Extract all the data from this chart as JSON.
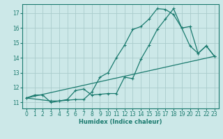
{
  "xlabel": "Humidex (Indice chaleur)",
  "bg_color": "#cce8e8",
  "line_color": "#1a7a6e",
  "grid_color": "#aacccc",
  "xlim": [
    -0.5,
    23.5
  ],
  "ylim": [
    10.6,
    17.6
  ],
  "yticks": [
    11,
    12,
    13,
    14,
    15,
    16,
    17
  ],
  "xticks": [
    0,
    1,
    2,
    3,
    4,
    5,
    6,
    7,
    8,
    9,
    10,
    11,
    12,
    13,
    14,
    15,
    16,
    17,
    18,
    19,
    20,
    21,
    22,
    23
  ],
  "line1_x": [
    0,
    1,
    2,
    3,
    4,
    5,
    6,
    7,
    8,
    9,
    10,
    11,
    12,
    13,
    14,
    15,
    16,
    17,
    18,
    19,
    20,
    21,
    22,
    23
  ],
  "line1_y": [
    11.3,
    11.5,
    11.5,
    11.0,
    11.1,
    11.15,
    11.2,
    11.2,
    11.7,
    12.7,
    13.0,
    14.0,
    14.85,
    15.9,
    16.1,
    16.6,
    17.3,
    17.25,
    16.9,
    16.0,
    14.8,
    14.3,
    14.8,
    14.1
  ],
  "line2_x": [
    0,
    3,
    4,
    5,
    6,
    7,
    8,
    9,
    10,
    11,
    12,
    13,
    14,
    15,
    16,
    17,
    18,
    19,
    20,
    21,
    22,
    23
  ],
  "line2_y": [
    11.3,
    11.1,
    11.1,
    11.2,
    11.8,
    11.9,
    11.5,
    11.55,
    11.6,
    11.6,
    12.7,
    12.6,
    13.9,
    14.85,
    15.9,
    16.6,
    17.3,
    16.0,
    16.1,
    14.3,
    14.8,
    14.1
  ],
  "line3_x": [
    0,
    23
  ],
  "line3_y": [
    11.3,
    14.1
  ]
}
